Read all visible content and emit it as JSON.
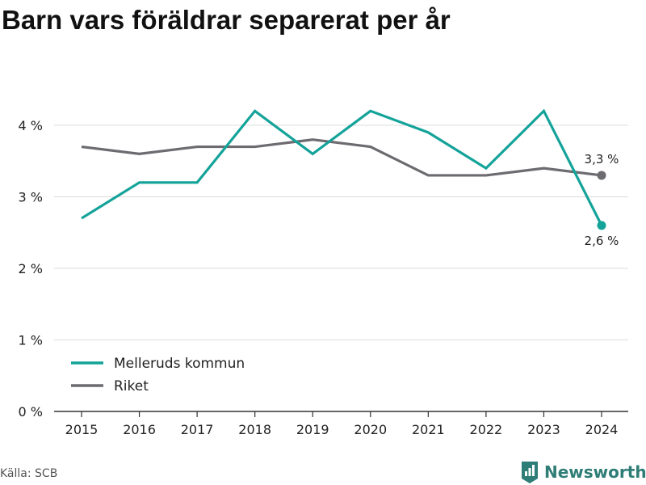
{
  "title": "Barn vars föräldrar separerat per år",
  "source": "Källa: SCB",
  "brand": {
    "name": "Newsworthy",
    "icon": "newsworthy-logo-icon",
    "color": "#2e7d76"
  },
  "chart_data": {
    "type": "line",
    "title": "Barn vars föräldrar separerat per år",
    "xlabel": "",
    "ylabel": "",
    "x": [
      "2015",
      "2016",
      "2017",
      "2018",
      "2019",
      "2020",
      "2021",
      "2022",
      "2023",
      "2024"
    ],
    "ylim": [
      0,
      4.2
    ],
    "y_ticks": [
      0,
      1,
      2,
      3,
      4
    ],
    "y_tick_labels": [
      "0 %",
      "1 %",
      "2 %",
      "3 %",
      "4 %"
    ],
    "grid": "horizontal",
    "legend_position": "bottom-left",
    "series": [
      {
        "name": "Melleruds kommun",
        "color": "#14a399",
        "values": [
          2.7,
          3.2,
          3.2,
          4.2,
          3.6,
          4.2,
          3.9,
          3.4,
          4.2,
          2.6
        ],
        "end_label": "2,6 %"
      },
      {
        "name": "Riket",
        "color": "#6d6b70",
        "values": [
          3.7,
          3.6,
          3.7,
          3.7,
          3.8,
          3.7,
          3.3,
          3.3,
          3.4,
          3.3
        ],
        "end_label": "3,3 %"
      }
    ]
  }
}
